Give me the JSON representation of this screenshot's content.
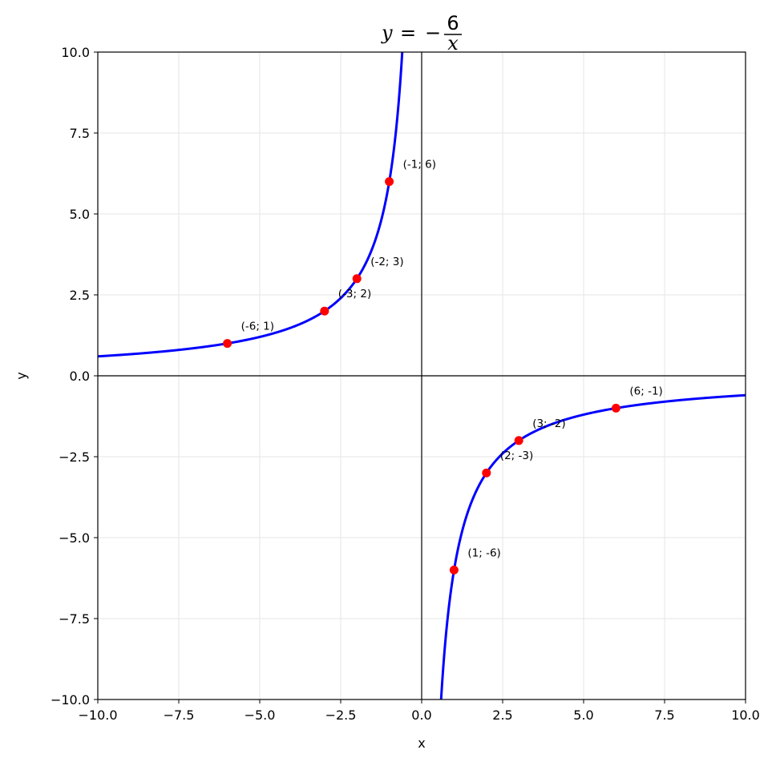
{
  "chart_data": {
    "type": "line",
    "title": {
      "lhs": "y",
      "eq": "=",
      "sign": "−",
      "numerator": "6",
      "denominator": "x"
    },
    "xlabel": "x",
    "ylabel": "y",
    "xlim": [
      -10,
      10
    ],
    "ylim": [
      -10,
      10
    ],
    "xticks": [
      -10,
      -7.5,
      -5,
      -2.5,
      0,
      2.5,
      5,
      7.5,
      10
    ],
    "yticks": [
      -10,
      -7.5,
      -5,
      -2.5,
      0,
      2.5,
      5,
      7.5,
      10
    ],
    "xtick_labels": [
      "−10.0",
      "−7.5",
      "−5.0",
      "−2.5",
      "0.0",
      "2.5",
      "5.0",
      "7.5",
      "10.0"
    ],
    "ytick_labels": [
      "−10.0",
      "−7.5",
      "−5.0",
      "−2.5",
      "0.0",
      "2.5",
      "5.0",
      "7.5",
      "10.0"
    ],
    "grid": true,
    "function": {
      "k": -6
    },
    "curve_color": "#0000ff",
    "point_color": "#ff0000",
    "axis_line_color": "#000000",
    "grid_color": "#e6e6e6",
    "points": [
      {
        "x": -6,
        "y": 1,
        "label": "(-6; 1)"
      },
      {
        "x": -3,
        "y": 2,
        "label": "(-3; 2)"
      },
      {
        "x": -2,
        "y": 3,
        "label": "(-2; 3)"
      },
      {
        "x": -1,
        "y": 6,
        "label": "(-1; 6)"
      },
      {
        "x": 1,
        "y": -6,
        "label": "(1; -6)"
      },
      {
        "x": 2,
        "y": -3,
        "label": "(2; -3)"
      },
      {
        "x": 3,
        "y": -2,
        "label": "(3; -2)"
      },
      {
        "x": 6,
        "y": -1,
        "label": "(6; -1)"
      }
    ]
  }
}
